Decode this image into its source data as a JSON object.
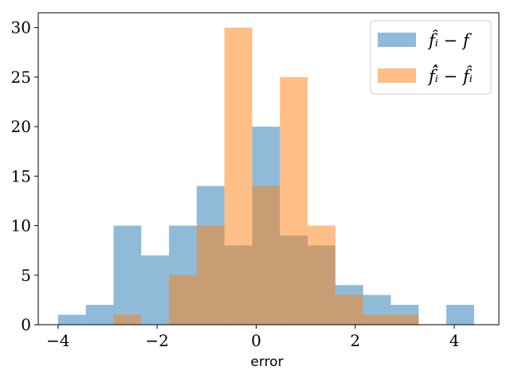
{
  "chart_data": {
    "type": "histogram",
    "xlabel": "error",
    "ylabel": "",
    "title": "",
    "xlim": [
      -4.4,
      4.9
    ],
    "ylim": [
      0,
      31.5
    ],
    "xticks": [
      {
        "value": -4,
        "label": "−4"
      },
      {
        "value": -2,
        "label": "−2"
      },
      {
        "value": 0,
        "label": "0"
      },
      {
        "value": 2,
        "label": "2"
      },
      {
        "value": 4,
        "label": "4"
      }
    ],
    "yticks": [
      {
        "value": 0,
        "label": "0"
      },
      {
        "value": 5,
        "label": "5"
      },
      {
        "value": 10,
        "label": "10"
      },
      {
        "value": 15,
        "label": "15"
      },
      {
        "value": 20,
        "label": "20"
      },
      {
        "value": 25,
        "label": "25"
      },
      {
        "value": 30,
        "label": "30"
      }
    ],
    "grid": false,
    "legend_position": "top-right",
    "series": [
      {
        "name": "f̂ᵢ − f",
        "color": "#1f77b4",
        "alpha": 0.5,
        "bins": [
          {
            "x0": -4.0,
            "x1": -3.44,
            "count": 1
          },
          {
            "x0": -3.44,
            "x1": -2.88,
            "count": 2
          },
          {
            "x0": -2.88,
            "x1": -2.32,
            "count": 10
          },
          {
            "x0": -2.32,
            "x1": -1.76,
            "count": 7
          },
          {
            "x0": -1.76,
            "x1": -1.2,
            "count": 10
          },
          {
            "x0": -1.2,
            "x1": -0.64,
            "count": 14
          },
          {
            "x0": -0.64,
            "x1": -0.08,
            "count": 8
          },
          {
            "x0": -0.08,
            "x1": 0.48,
            "count": 20
          },
          {
            "x0": 0.48,
            "x1": 1.04,
            "count": 9
          },
          {
            "x0": 1.04,
            "x1": 1.6,
            "count": 8
          },
          {
            "x0": 1.6,
            "x1": 2.16,
            "count": 4
          },
          {
            "x0": 2.16,
            "x1": 2.72,
            "count": 3
          },
          {
            "x0": 2.72,
            "x1": 3.28,
            "count": 2
          },
          {
            "x0": 3.28,
            "x1": 3.84,
            "count": 0
          },
          {
            "x0": 3.84,
            "x1": 4.4,
            "count": 2
          }
        ]
      },
      {
        "name": "f̂̂ᵢ − f̂ᵢ",
        "color": "#ff7f0e",
        "alpha": 0.5,
        "bins": [
          {
            "x0": -2.88,
            "x1": -2.32,
            "count": 1
          },
          {
            "x0": -2.32,
            "x1": -1.76,
            "count": 0
          },
          {
            "x0": -1.76,
            "x1": -1.2,
            "count": 5
          },
          {
            "x0": -1.2,
            "x1": -0.64,
            "count": 10
          },
          {
            "x0": -0.64,
            "x1": -0.08,
            "count": 30
          },
          {
            "x0": -0.08,
            "x1": 0.48,
            "count": 14
          },
          {
            "x0": 0.48,
            "x1": 1.04,
            "count": 25
          },
          {
            "x0": 1.04,
            "x1": 1.6,
            "count": 10
          },
          {
            "x0": 1.6,
            "x1": 2.16,
            "count": 3
          },
          {
            "x0": 2.16,
            "x1": 2.72,
            "count": 1
          },
          {
            "x0": 2.72,
            "x1": 3.28,
            "count": 1
          }
        ]
      }
    ]
  }
}
